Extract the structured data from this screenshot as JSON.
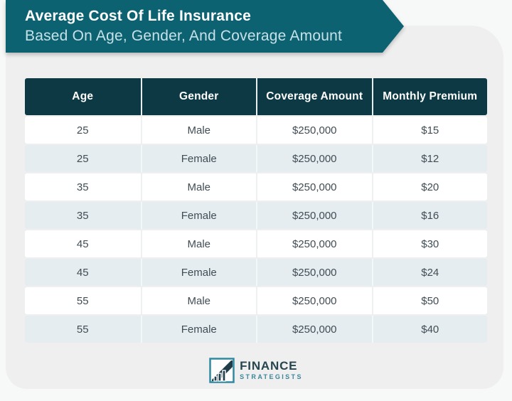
{
  "banner": {
    "title": "Average Cost Of Life Insurance",
    "subtitle": "Based On Age, Gender, And Coverage Amount"
  },
  "chart_data": {
    "type": "table",
    "title": "Average Cost Of Life Insurance Based On Age, Gender, And Coverage Amount",
    "columns": [
      "Age",
      "Gender",
      "Coverage Amount",
      "Monthly Premium"
    ],
    "rows": [
      [
        "25",
        "Male",
        "$250,000",
        "$15"
      ],
      [
        "25",
        "Female",
        "$250,000",
        "$12"
      ],
      [
        "35",
        "Male",
        "$250,000",
        "$20"
      ],
      [
        "35",
        "Female",
        "$250,000",
        "$16"
      ],
      [
        "45",
        "Male",
        "$250,000",
        "$30"
      ],
      [
        "45",
        "Female",
        "$250,000",
        "$24"
      ],
      [
        "55",
        "Male",
        "$250,000",
        "$50"
      ],
      [
        "55",
        "Female",
        "$250,000",
        "$40"
      ]
    ],
    "layout_hints": {
      "striped": true,
      "stripe_rows": "even",
      "header_position": "top"
    }
  },
  "footer": {
    "brand_line1": "FINANCE",
    "brand_line2": "STRATEGISTS"
  },
  "colors": {
    "banner_teal": "#0d6271",
    "header_dark": "#0c3944",
    "row_tint": "#e5edf0",
    "subtitle_text": "#c7e1e8",
    "body_text": "#414d54",
    "card_bg": "#efeff0",
    "brand_dark": "#27454f",
    "brand_teal": "#3a8599"
  }
}
